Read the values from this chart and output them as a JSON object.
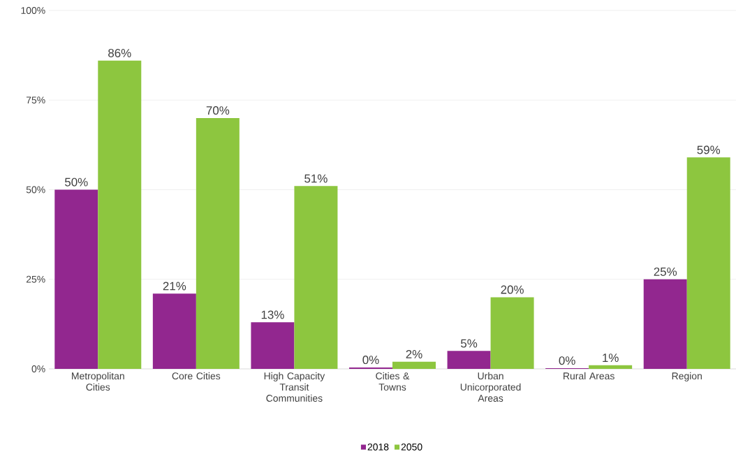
{
  "chart_data": {
    "type": "bar",
    "categories": [
      "Metropolitan Cities",
      "Core Cities",
      "High Capacity Transit Communities",
      "Cities & Towns",
      "Urban Unicorporated Areas",
      "Rural Areas",
      "Region"
    ],
    "series": [
      {
        "name": "2018",
        "color": "#92278f",
        "values": [
          50,
          21,
          13,
          0.4,
          5,
          0.2,
          25
        ],
        "value_labels": [
          "50%",
          "21%",
          "13%",
          "0%",
          "5%",
          "0%",
          "25%"
        ]
      },
      {
        "name": "2050",
        "color": "#8dc63f",
        "values": [
          86,
          70,
          51,
          2,
          20,
          1,
          59
        ],
        "value_labels": [
          "86%",
          "70%",
          "51%",
          "2%",
          "20%",
          "1%",
          "59%"
        ]
      }
    ],
    "ylim": [
      0,
      100
    ],
    "yticks": [
      {
        "value": 0,
        "label": "0%"
      },
      {
        "value": 25,
        "label": "25%"
      },
      {
        "value": 50,
        "label": "50%"
      },
      {
        "value": 75,
        "label": "75%"
      },
      {
        "value": 100,
        "label": "100%"
      }
    ],
    "grid": "y",
    "legend": "bottom"
  }
}
